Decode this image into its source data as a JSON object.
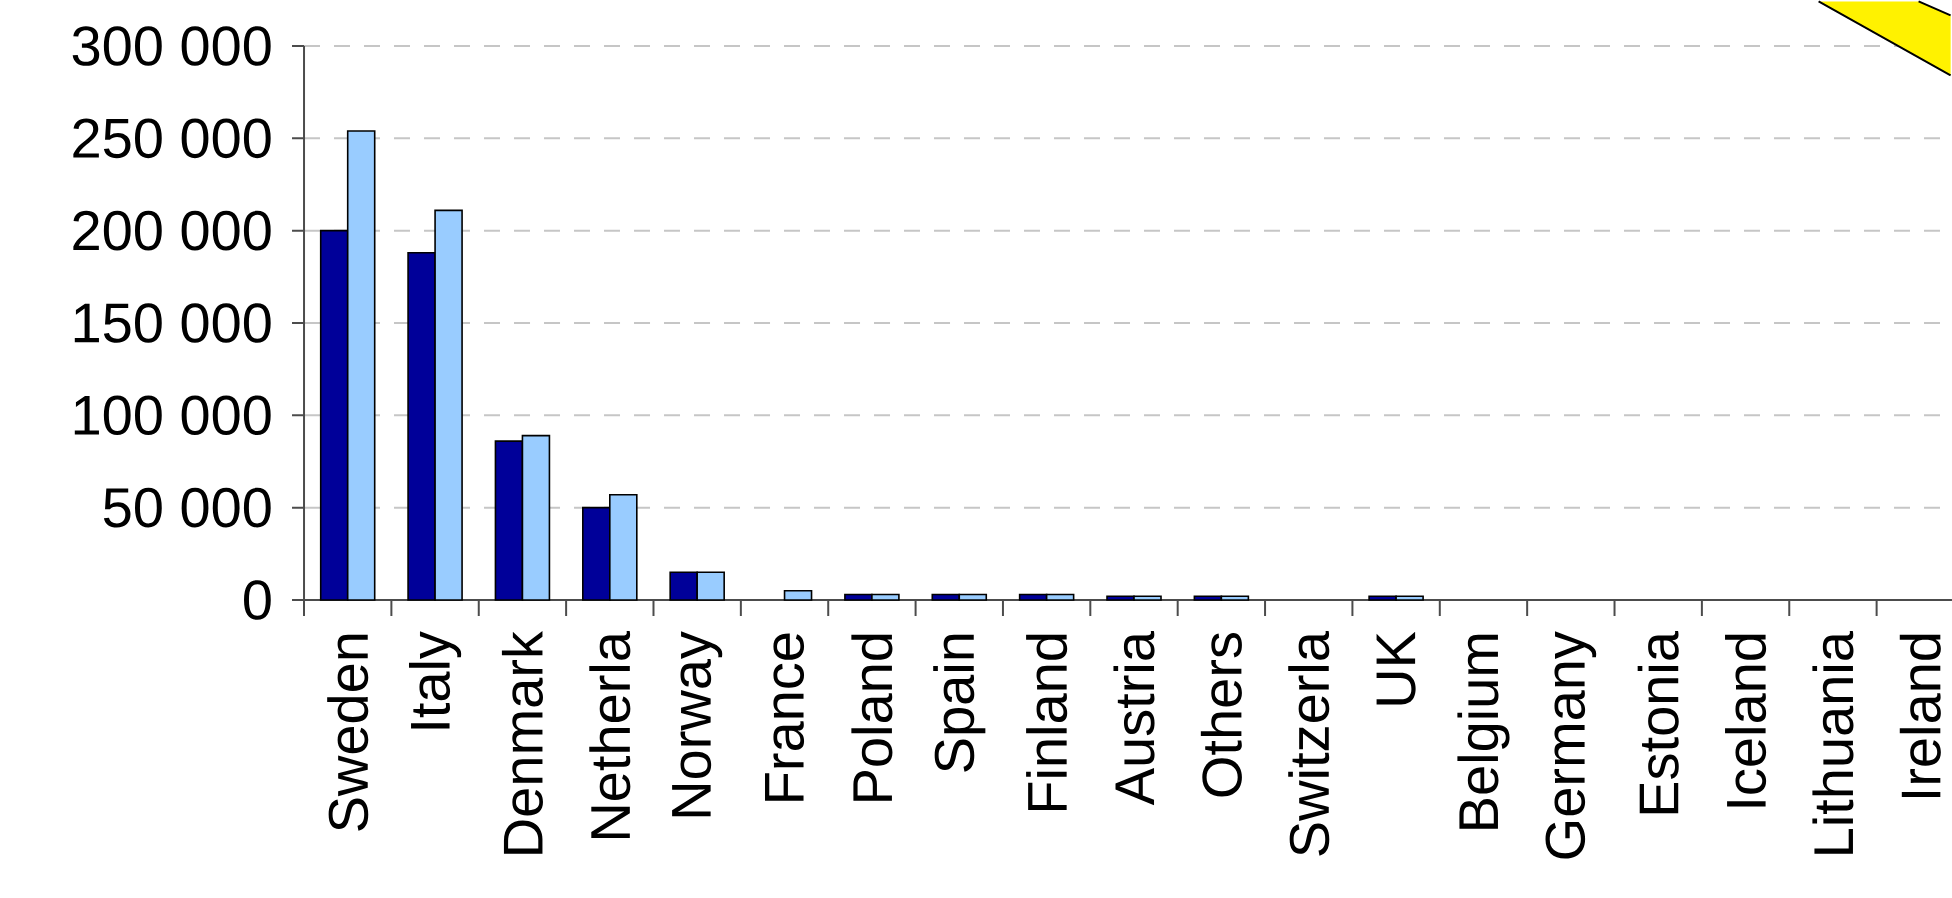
{
  "chart_data": {
    "type": "bar",
    "categories": [
      "Sweden",
      "Italy",
      "Denmark",
      "Netherla",
      "Norway",
      "France",
      "Poland",
      "Spain",
      "Finland",
      "Austria",
      "Others",
      "Switzerla",
      "UK",
      "Belgium",
      "Germany",
      "Estonia",
      "Iceland",
      "Lithuania",
      "Ireland"
    ],
    "series": [
      {
        "color": "#000099",
        "values": [
          200000,
          188000,
          86000,
          50000,
          15000,
          null,
          3000,
          3000,
          3000,
          2000,
          2000,
          null,
          2000,
          null,
          null,
          null,
          null,
          null,
          null
        ]
      },
      {
        "color": "#99ccff",
        "values": [
          254000,
          211000,
          89000,
          57000,
          15000,
          5000,
          3000,
          3000,
          3000,
          2000,
          2000,
          null,
          2000,
          null,
          null,
          null,
          null,
          null,
          null
        ]
      }
    ],
    "ylim": [
      0,
      300000
    ],
    "yticks": [
      {
        "value": 0,
        "label": "0"
      },
      {
        "value": 50000,
        "label": "50 000"
      },
      {
        "value": 100000,
        "label": "100 000"
      },
      {
        "value": 150000,
        "label": "150 000"
      },
      {
        "value": 200000,
        "label": "200 000"
      },
      {
        "value": 250000,
        "label": "250 000"
      },
      {
        "value": 300000,
        "label": "300 000"
      }
    ],
    "grid": "y"
  }
}
